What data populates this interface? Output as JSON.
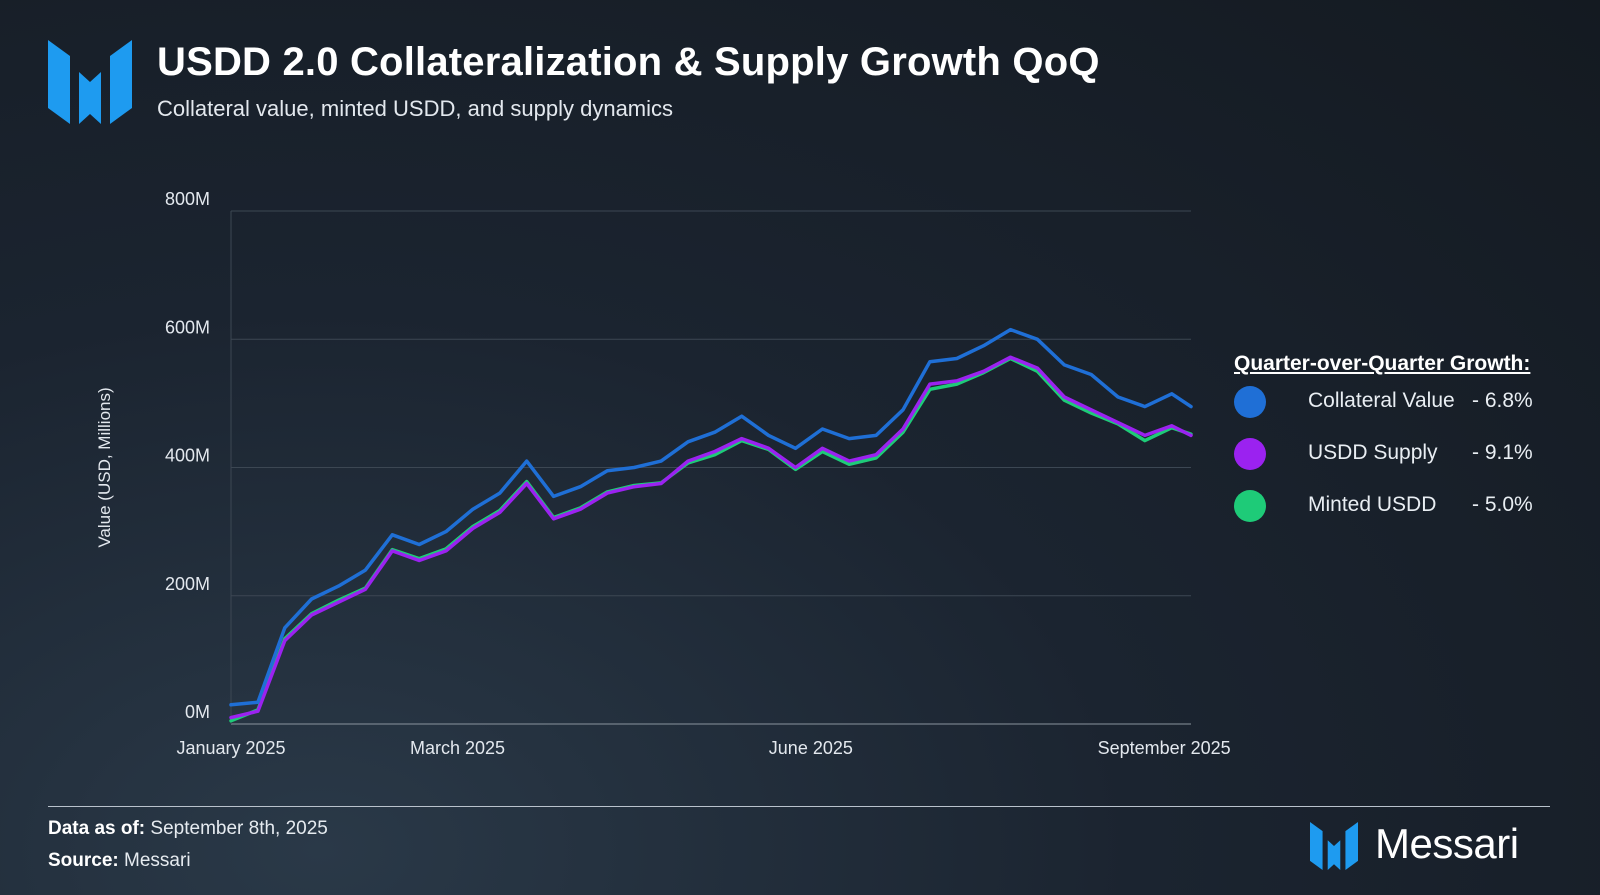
{
  "header": {
    "title": "USDD 2.0 Collateralization & Supply Growth QoQ",
    "subtitle": "Collateral value, minted USDD, and supply dynamics"
  },
  "legend": {
    "title": "Quarter-over-Quarter Growth:",
    "items": [
      {
        "name": "Collateral Value",
        "value": "- 6.8%",
        "color": "#1f6fd6"
      },
      {
        "name": "USDD Supply",
        "value": "- 9.1%",
        "color": "#9b22f0"
      },
      {
        "name": "Minted USDD",
        "value": "- 5.0%",
        "color": "#1ecb78"
      }
    ]
  },
  "footer": {
    "data_as_of_label": "Data as of:",
    "data_as_of_value": "September 8th, 2025",
    "source_label": "Source:",
    "source_value": "Messari"
  },
  "brand": {
    "name": "Messari",
    "icon": "messari-logo-icon",
    "accent": "#1e9bf0"
  },
  "chart_data": {
    "type": "line",
    "ylabel": "Value (USD, Millions)",
    "ylim": [
      0,
      800
    ],
    "yticks": [
      "0M",
      "200M",
      "400M",
      "600M",
      "800M"
    ],
    "ytick_values": [
      0,
      200,
      400,
      600,
      800
    ],
    "xlim": [
      "2025-01-01",
      "2025-09-08"
    ],
    "xticks": [
      {
        "label": "January 2025",
        "date": "2025-01-01"
      },
      {
        "label": "March 2025",
        "date": "2025-03-01"
      },
      {
        "label": "June 2025",
        "date": "2025-06-01"
      },
      {
        "label": "September 2025",
        "date": "2025-09-01"
      }
    ],
    "grid": "horizontal",
    "legend_position": "right",
    "x": [
      "2025-01-01",
      "2025-01-08",
      "2025-01-15",
      "2025-01-22",
      "2025-01-29",
      "2025-02-05",
      "2025-02-12",
      "2025-02-19",
      "2025-02-26",
      "2025-03-05",
      "2025-03-12",
      "2025-03-19",
      "2025-03-26",
      "2025-04-02",
      "2025-04-09",
      "2025-04-16",
      "2025-04-23",
      "2025-04-30",
      "2025-05-07",
      "2025-05-14",
      "2025-05-21",
      "2025-05-28",
      "2025-06-04",
      "2025-06-11",
      "2025-06-18",
      "2025-06-25",
      "2025-07-02",
      "2025-07-09",
      "2025-07-16",
      "2025-07-23",
      "2025-07-30",
      "2025-08-06",
      "2025-08-13",
      "2025-08-20",
      "2025-08-27",
      "2025-09-03",
      "2025-09-08"
    ],
    "series": [
      {
        "name": "Collateral Value",
        "color": "#1f6fd6",
        "values": [
          30,
          34,
          150,
          195,
          215,
          240,
          295,
          280,
          300,
          335,
          360,
          410,
          355,
          370,
          395,
          400,
          410,
          440,
          455,
          480,
          450,
          430,
          460,
          445,
          450,
          490,
          565,
          570,
          590,
          615,
          600,
          560,
          545,
          510,
          495,
          515,
          495
        ]
      },
      {
        "name": "USDD Supply",
        "color": "#9b22f0",
        "values": [
          10,
          20,
          130,
          170,
          190,
          210,
          270,
          255,
          270,
          305,
          330,
          375,
          320,
          335,
          360,
          370,
          375,
          410,
          425,
          445,
          430,
          400,
          430,
          410,
          420,
          460,
          530,
          535,
          550,
          572,
          555,
          510,
          490,
          470,
          450,
          465,
          450
        ]
      },
      {
        "name": "Minted USDD",
        "color": "#1ecb78",
        "values": [
          5,
          22,
          133,
          172,
          193,
          212,
          272,
          258,
          273,
          308,
          333,
          378,
          322,
          337,
          362,
          372,
          376,
          407,
          420,
          442,
          428,
          397,
          425,
          405,
          415,
          455,
          522,
          530,
          548,
          570,
          550,
          505,
          485,
          468,
          442,
          462,
          452
        ]
      }
    ]
  }
}
